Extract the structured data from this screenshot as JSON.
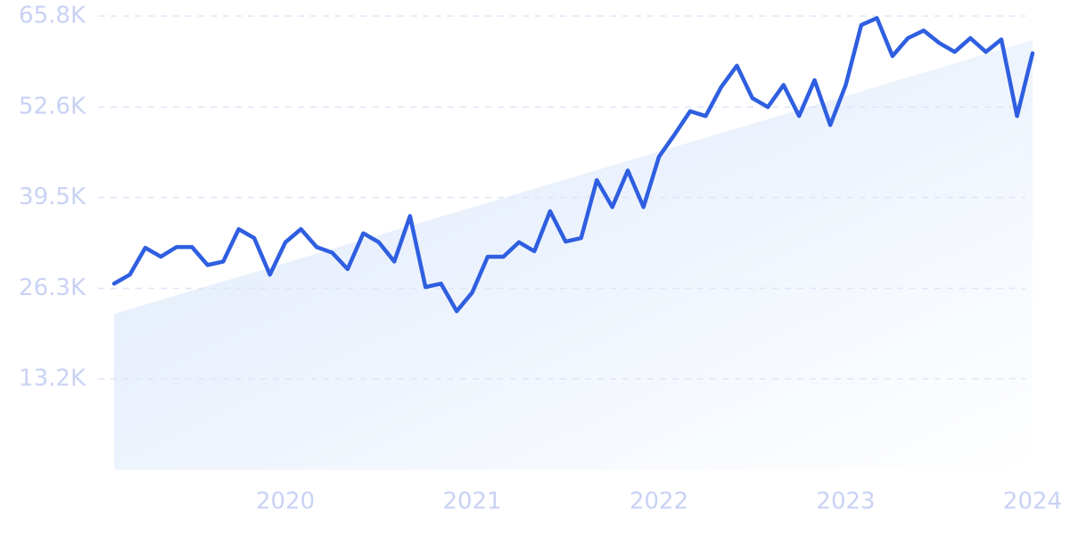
{
  "chart_data": {
    "type": "line",
    "x": [
      2019.083,
      2019.167,
      2019.25,
      2019.333,
      2019.417,
      2019.5,
      2019.583,
      2019.667,
      2019.75,
      2019.833,
      2019.917,
      2020.0,
      2020.083,
      2020.167,
      2020.25,
      2020.333,
      2020.417,
      2020.5,
      2020.583,
      2020.667,
      2020.75,
      2020.833,
      2020.917,
      2021.0,
      2021.083,
      2021.167,
      2021.25,
      2021.333,
      2021.417,
      2021.5,
      2021.583,
      2021.667,
      2021.75,
      2021.833,
      2021.917,
      2022.0,
      2022.083,
      2022.167,
      2022.25,
      2022.333,
      2022.417,
      2022.5,
      2022.583,
      2022.667,
      2022.75,
      2022.833,
      2022.917,
      2023.0,
      2023.083,
      2023.167,
      2023.25,
      2023.333,
      2023.417,
      2023.5,
      2023.583,
      2023.667,
      2023.75,
      2023.833,
      2023.917,
      2024.0
    ],
    "series": [
      {
        "color": "#2f5fe0",
        "values": [
          27000,
          28300,
          32200,
          30900,
          32300,
          32300,
          29700,
          30200,
          34900,
          33600,
          28300,
          33000,
          34900,
          32300,
          31500,
          29100,
          34300,
          33000,
          30200,
          36800,
          26500,
          27000,
          23000,
          25700,
          30900,
          30900,
          33000,
          31700,
          37500,
          33100,
          33600,
          42000,
          38100,
          43400,
          38100,
          45400,
          48600,
          52000,
          51300,
          55500,
          58600,
          53900,
          52600,
          55800,
          51300,
          56500,
          50000,
          55800,
          64500,
          65500,
          60000,
          62600,
          63700,
          61900,
          60600,
          62600,
          60600,
          62400,
          51300,
          60400
        ]
      }
    ],
    "trend": {
      "color": "#dce8fb",
      "x": [
        2019.083,
        2024.0
      ],
      "values": [
        22600,
        62300
      ]
    },
    "xlim": [
      2019.083,
      2024.0
    ],
    "xticks": [
      2020,
      2021,
      2022,
      2023,
      2024
    ],
    "ylim": [
      0,
      65800
    ],
    "yticks": [
      {
        "value": 13200,
        "label": "13.2K"
      },
      {
        "value": 26300,
        "label": "26.3K"
      },
      {
        "value": 39500,
        "label": "39.5K"
      },
      {
        "value": 52600,
        "label": "52.6K"
      },
      {
        "value": 65800,
        "label": "65.8K"
      }
    ],
    "grid": true
  }
}
